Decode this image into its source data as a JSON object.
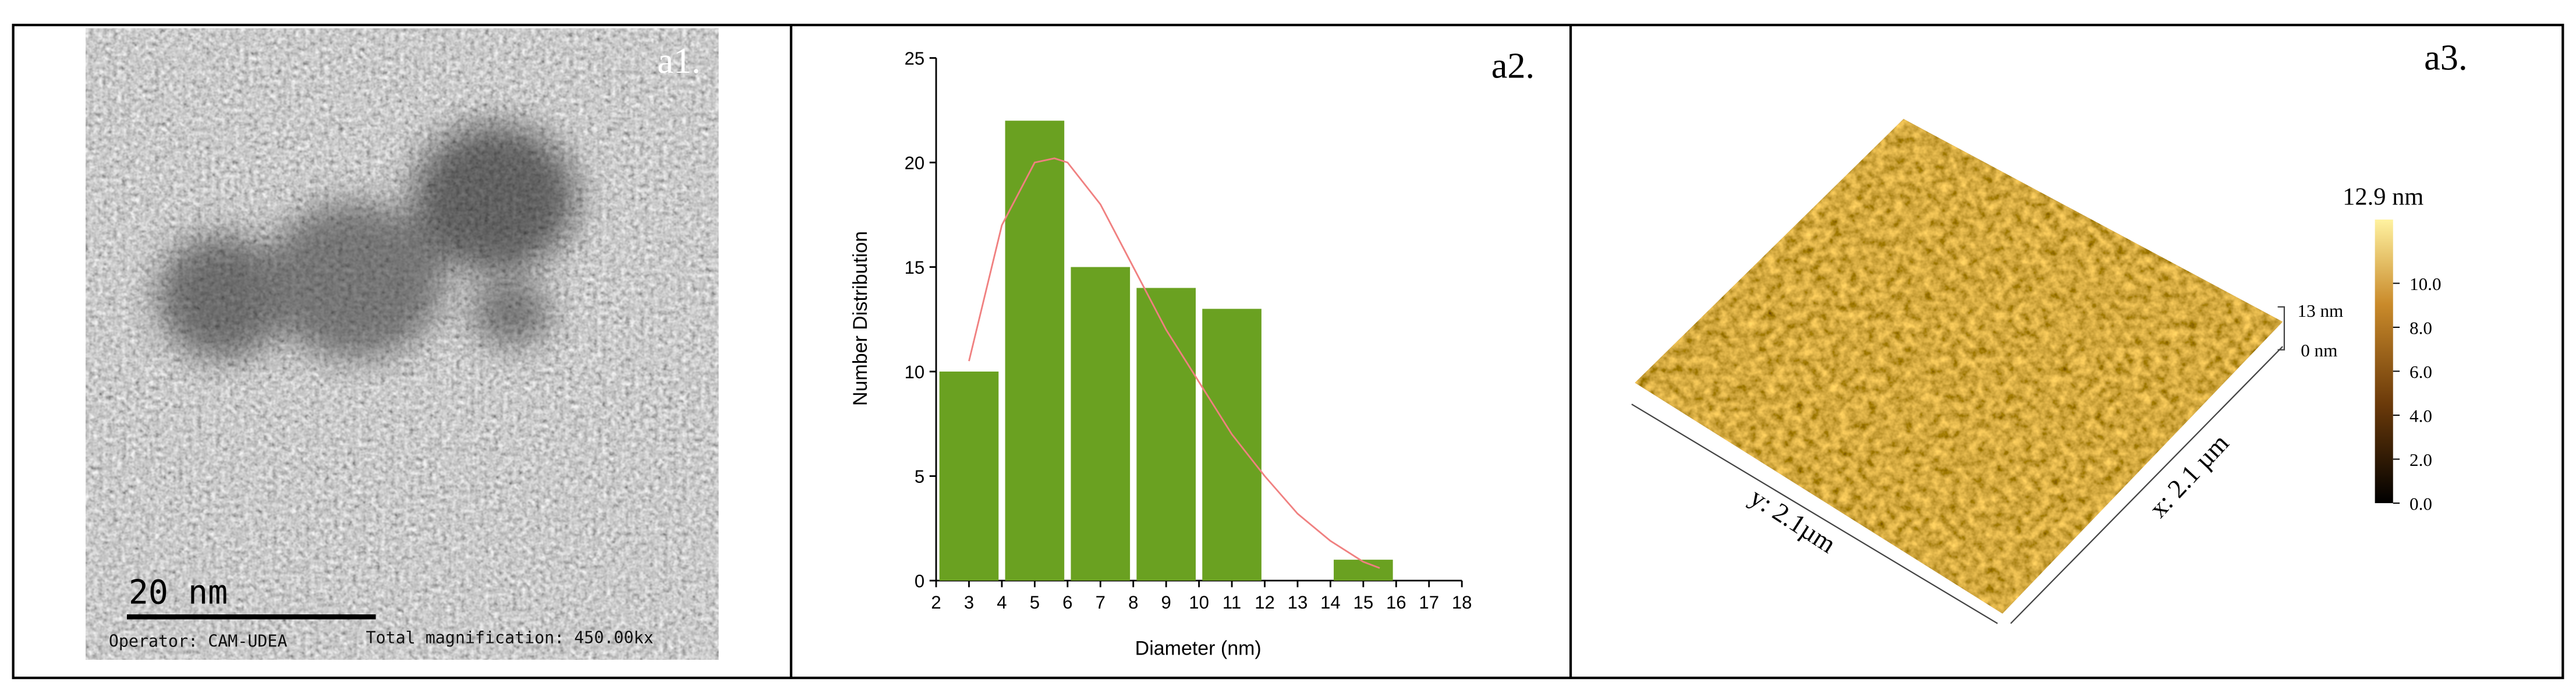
{
  "panels": {
    "a1": {
      "label": "a1.",
      "scale_bar": "20 nm",
      "operator": "Operator: CAM-UDEA",
      "magnification": "Total magnification: 450.00kx"
    },
    "a3": {
      "label": "a3.",
      "colorbar_max": "12.9 nm",
      "z_top": "13 nm",
      "z_bottom": "0 nm",
      "y_size": "y: 2.1µm",
      "x_size": "x: 2.1 µm",
      "colorbar": {
        "lim": [
          0,
          12.9
        ],
        "ticks": [
          {
            "value": 0,
            "label": "0.0"
          },
          {
            "value": 2,
            "label": "2.0"
          },
          {
            "value": 4,
            "label": "4.0"
          },
          {
            "value": 6,
            "label": "6.0"
          },
          {
            "value": 8,
            "label": "8.0"
          },
          {
            "value": 10,
            "label": "10.0"
          }
        ]
      }
    }
  },
  "chart_data": {
    "type": "histogram",
    "label": "a2.",
    "x_label": "Diameter (nm)",
    "y_label": "Number Distribution",
    "bins": [
      2,
      4,
      6,
      8,
      10,
      12,
      14,
      16
    ],
    "values": [
      10,
      22,
      15,
      14,
      13,
      0,
      1
    ],
    "color": "#6aa121",
    "xlim": [
      2,
      18
    ],
    "xticks": [
      2,
      3,
      4,
      5,
      6,
      7,
      8,
      9,
      10,
      11,
      12,
      13,
      14,
      15,
      16,
      17,
      18
    ],
    "ylim": [
      0,
      25
    ],
    "yticks": [
      0,
      5,
      10,
      15,
      20,
      25
    ],
    "fit": {
      "color": "#f08080",
      "x": [
        3,
        4,
        5,
        5.6,
        6,
        7,
        8,
        9,
        10,
        11,
        12,
        13,
        14,
        15,
        15.5
      ],
      "values": [
        10.5,
        17,
        20,
        20.2,
        20,
        18,
        15,
        12,
        9.5,
        7,
        5,
        3.2,
        1.9,
        0.9,
        0.6
      ]
    }
  }
}
